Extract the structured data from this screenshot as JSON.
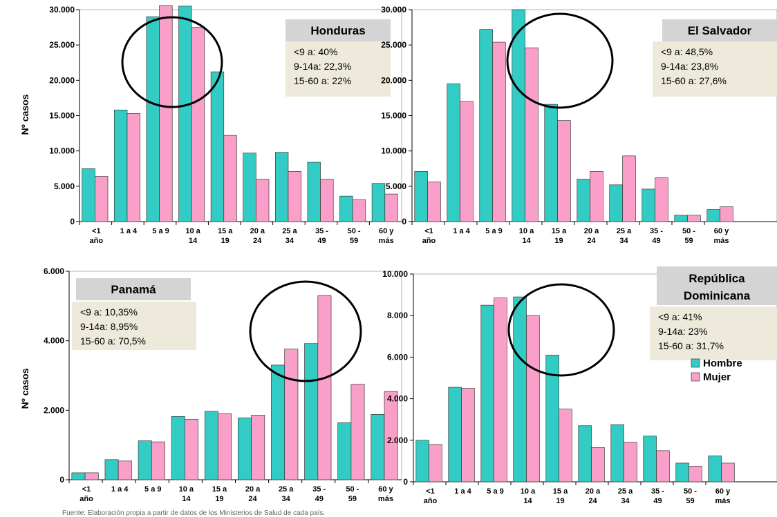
{
  "ylabel": "Nº casos",
  "colors": {
    "hombre": "#33CCC4",
    "mujer": "#F99FC9",
    "box": "#EEEADB",
    "titlebox": "#D4D4D4"
  },
  "chart_data": [
    {
      "type": "bar",
      "title": "Honduras",
      "ylabel": "Nº casos",
      "ylim": [
        0,
        30000
      ],
      "yticks": [
        "0",
        "5.000",
        "10.000",
        "15.000",
        "20.000",
        "25.000",
        "30.000"
      ],
      "tickvalues": [
        0,
        5000,
        10000,
        15000,
        20000,
        25000,
        30000
      ],
      "categories": [
        [
          "<1",
          "año"
        ],
        [
          "1 a 4"
        ],
        [
          "5 a 9"
        ],
        [
          "10 a",
          "14"
        ],
        [
          "15 a",
          "19"
        ],
        [
          "20 a",
          "24"
        ],
        [
          "25 a",
          "34"
        ],
        [
          "35 -",
          "49"
        ],
        [
          "50 -",
          "59"
        ],
        [
          "60 y",
          "más"
        ]
      ],
      "series": [
        {
          "name": "Hombre",
          "values": [
            7500,
            15800,
            29000,
            30500,
            21200,
            9700,
            9800,
            8400,
            3600,
            5400
          ]
        },
        {
          "name": "Mujer",
          "values": [
            6400,
            15300,
            30600,
            27500,
            12200,
            6000,
            7100,
            6000,
            3100,
            3900
          ]
        }
      ],
      "info": [
        "<9 a: 40%",
        "9-14a: 22,3%",
        "15-60 a: 22%"
      ]
    },
    {
      "type": "bar",
      "title": "El Salvador",
      "ylabel": "",
      "ylim": [
        0,
        30000
      ],
      "yticks": [
        "0",
        "5.000",
        "10.000",
        "15.000",
        "20.000",
        "25.000",
        "30.000"
      ],
      "tickvalues": [
        0,
        5000,
        10000,
        15000,
        20000,
        25000,
        30000
      ],
      "categories": [
        [
          "<1",
          "año"
        ],
        [
          "1 a 4"
        ],
        [
          "5 a 9"
        ],
        [
          "10 a",
          "14"
        ],
        [
          "15 a",
          "19"
        ],
        [
          "20 a",
          "24"
        ],
        [
          "25 a",
          "34"
        ],
        [
          "35 -",
          "49"
        ],
        [
          "50 -",
          "59"
        ],
        [
          "60 y",
          "más"
        ]
      ],
      "series": [
        {
          "name": "Hombre",
          "values": [
            7100,
            19500,
            27200,
            30000,
            16600,
            6000,
            5200,
            4600,
            900,
            1700
          ]
        },
        {
          "name": "Mujer",
          "values": [
            5600,
            17000,
            25400,
            24600,
            14300,
            7100,
            9300,
            6200,
            900,
            2100
          ]
        }
      ],
      "info": [
        "<9 a: 48,5%",
        "9-14a: 23,8%",
        "15-60 a: 27,6%"
      ]
    },
    {
      "type": "bar",
      "title": "Panamá",
      "ylabel": "Nº casos",
      "ylim": [
        0,
        6000
      ],
      "yticks": [
        "0",
        "2.000",
        "4.000",
        "6.000"
      ],
      "tickvalues": [
        0,
        2000,
        4000,
        6000
      ],
      "categories": [
        [
          "<1",
          "año"
        ],
        [
          "1 a 4"
        ],
        [
          "5 a 9"
        ],
        [
          "10 a",
          "14"
        ],
        [
          "15 a",
          "19"
        ],
        [
          "20 a",
          "24"
        ],
        [
          "25 a",
          "34"
        ],
        [
          "35 -",
          "49"
        ],
        [
          "50 -",
          "59"
        ],
        [
          "60 y",
          "más"
        ]
      ],
      "series": [
        {
          "name": "Hombre",
          "values": [
            200,
            580,
            1120,
            1820,
            1970,
            1780,
            3300,
            3920,
            1640,
            1880
          ]
        },
        {
          "name": "Mujer",
          "values": [
            200,
            540,
            1090,
            1740,
            1900,
            1860,
            3760,
            5300,
            2750,
            2540
          ]
        }
      ],
      "info": [
        "<9 a: 10,35%",
        "9-14a: 8,95%",
        "15-60 a: 70,5%"
      ]
    },
    {
      "type": "bar",
      "title": "República Dominicana",
      "ylabel": "",
      "ylim": [
        0,
        10000
      ],
      "yticks": [
        "0",
        "2.000",
        "4.000",
        "6.000",
        "8.000",
        "10.000"
      ],
      "tickvalues": [
        0,
        2000,
        4000,
        6000,
        8000,
        10000
      ],
      "categories": [
        [
          "<1",
          "año"
        ],
        [
          "1 a 4"
        ],
        [
          "5 a 9"
        ],
        [
          "10 a",
          "14"
        ],
        [
          "15 a",
          "19"
        ],
        [
          "20 a",
          "24"
        ],
        [
          "25 a",
          "34"
        ],
        [
          "35 -",
          "49"
        ],
        [
          "50 -",
          "59"
        ],
        [
          "60 y",
          "más"
        ]
      ],
      "series": [
        {
          "name": "Hombre",
          "values": [
            2000,
            4550,
            8500,
            8900,
            6100,
            2700,
            2750,
            2200,
            900,
            1250
          ]
        },
        {
          "name": "Mujer",
          "values": [
            1800,
            4500,
            8850,
            8000,
            3500,
            1650,
            1900,
            1500,
            750,
            900
          ]
        }
      ],
      "info": [
        "<9 a: 41%",
        "9-14a: 23%",
        "15-60 a: 31,7%"
      ],
      "legend": [
        "Hombre",
        "Mujer"
      ]
    }
  ],
  "footnote": "Fuente: Elaboración propia a partir de datos de los Ministerios de Salud de cada país."
}
